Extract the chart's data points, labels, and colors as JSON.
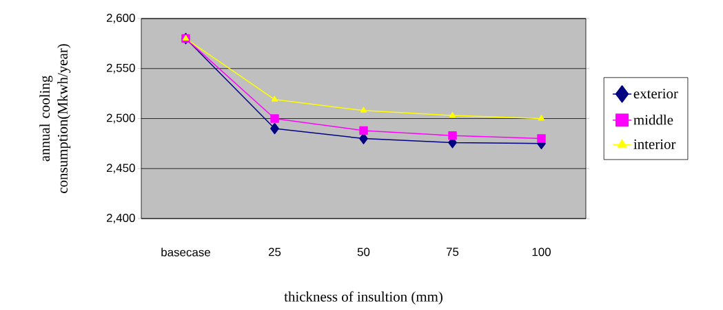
{
  "chart_data": {
    "type": "line",
    "xlabel": "thickness of insultion (mm)",
    "ylabel": "annual cooling consumption(Mkwh/year)",
    "categories": [
      "basecase",
      "25",
      "50",
      "75",
      "100"
    ],
    "series": [
      {
        "name": "exterior",
        "color": "#000080",
        "marker": "diamond",
        "values": [
          2580,
          2490,
          2480,
          2476,
          2475
        ]
      },
      {
        "name": "middle",
        "color": "#ff00ff",
        "marker": "square",
        "values": [
          2580,
          2500,
          2488,
          2483,
          2480
        ]
      },
      {
        "name": "interior",
        "color": "#ffff00",
        "marker": "triangle",
        "values": [
          2580,
          2519,
          2508,
          2503,
          2500
        ]
      }
    ],
    "ylim": [
      2400,
      2600
    ],
    "yticks": [
      {
        "value": 2400,
        "label": "2,400"
      },
      {
        "value": 2450,
        "label": "2,450"
      },
      {
        "value": 2500,
        "label": "2,500"
      },
      {
        "value": 2550,
        "label": "2,550"
      },
      {
        "value": 2600,
        "label": "2,600"
      }
    ],
    "grid": "y",
    "legend": "right"
  }
}
